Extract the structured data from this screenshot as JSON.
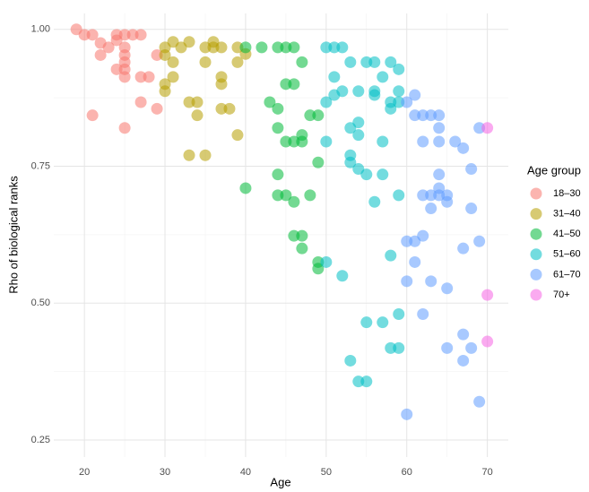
{
  "chart_data": {
    "type": "scatter",
    "x_label": "Age",
    "y_label": "Rho of biological ranks",
    "legend_title": "Age group",
    "legend_position": "right",
    "grid": true,
    "xlim": [
      16.2,
      72.6
    ],
    "ylim": [
      0.219,
      1.029
    ],
    "xticks": [
      20,
      30,
      40,
      50,
      60,
      70
    ],
    "yticks": [
      {
        "value": 0.25,
        "label": "0.25"
      },
      {
        "value": 0.5,
        "label": "0.50"
      },
      {
        "value": 0.75,
        "label": "0.75"
      },
      {
        "value": 1.0,
        "label": "1.00"
      }
    ],
    "series": [
      {
        "name": "18–30",
        "color": "#F8766D",
        "x": [
          19,
          20,
          21,
          22,
          22,
          23,
          24,
          24,
          24,
          25,
          25,
          25,
          25,
          25,
          25,
          25,
          26,
          27,
          27,
          27,
          28,
          29,
          29,
          21
        ],
        "values": [
          1.0,
          0.99,
          0.99,
          0.975,
          0.953,
          0.967,
          0.99,
          0.98,
          0.927,
          0.99,
          0.967,
          0.953,
          0.94,
          0.927,
          0.913,
          0.82,
          0.99,
          0.99,
          0.913,
          0.867,
          0.913,
          0.953,
          0.855,
          0.843
        ]
      },
      {
        "name": "31–40",
        "color": "#B79F00",
        "x": [
          30,
          30,
          30,
          30,
          31,
          31,
          31,
          32,
          33,
          33,
          33,
          34,
          34,
          35,
          35,
          35,
          36,
          36,
          37,
          37,
          37,
          37,
          38,
          39,
          39,
          39,
          40
        ],
        "values": [
          0.967,
          0.953,
          0.9,
          0.887,
          0.977,
          0.94,
          0.913,
          0.967,
          0.977,
          0.867,
          0.77,
          0.867,
          0.843,
          0.967,
          0.94,
          0.77,
          0.977,
          0.967,
          0.967,
          0.913,
          0.9,
          0.855,
          0.855,
          0.967,
          0.94,
          0.807,
          0.955
        ]
      },
      {
        "name": "41–50",
        "color": "#00BA38",
        "x": [
          40,
          40,
          42,
          43,
          44,
          44,
          44,
          44,
          44,
          45,
          45,
          45,
          45,
          46,
          46,
          46,
          46,
          46,
          47,
          47,
          47,
          47,
          47,
          48,
          48,
          49,
          49,
          49,
          49
        ],
        "values": [
          0.967,
          0.71,
          0.967,
          0.867,
          0.967,
          0.855,
          0.82,
          0.735,
          0.697,
          0.967,
          0.9,
          0.795,
          0.697,
          0.967,
          0.9,
          0.795,
          0.685,
          0.623,
          0.94,
          0.807,
          0.795,
          0.623,
          0.6,
          0.843,
          0.697,
          0.843,
          0.757,
          0.575,
          0.563
        ]
      },
      {
        "name": "51–60",
        "color": "#00BFC4",
        "x": [
          50,
          50,
          50,
          50,
          51,
          51,
          51,
          52,
          52,
          52,
          53,
          53,
          53,
          53,
          53,
          54,
          54,
          54,
          54,
          54,
          55,
          55,
          55,
          55,
          56,
          56,
          56,
          56,
          57,
          57,
          57,
          57,
          58,
          58,
          58,
          58,
          58,
          59,
          59,
          59,
          59,
          59,
          59
        ],
        "values": [
          0.967,
          0.867,
          0.795,
          0.575,
          0.967,
          0.913,
          0.88,
          0.967,
          0.887,
          0.55,
          0.94,
          0.82,
          0.77,
          0.757,
          0.395,
          0.887,
          0.83,
          0.807,
          0.745,
          0.357,
          0.94,
          0.735,
          0.465,
          0.357,
          0.94,
          0.887,
          0.88,
          0.685,
          0.913,
          0.795,
          0.735,
          0.465,
          0.94,
          0.867,
          0.855,
          0.587,
          0.418,
          0.927,
          0.887,
          0.867,
          0.697,
          0.48,
          0.418
        ]
      },
      {
        "name": "61–70",
        "color": "#619CFF",
        "x": [
          60,
          60,
          60,
          60,
          61,
          61,
          61,
          61,
          62,
          62,
          62,
          62,
          62,
          63,
          63,
          63,
          63,
          64,
          64,
          64,
          64,
          64,
          64,
          65,
          65,
          65,
          65,
          66,
          67,
          67,
          67,
          67,
          68,
          68,
          68,
          69,
          69,
          69
        ],
        "values": [
          0.867,
          0.613,
          0.54,
          0.297,
          0.88,
          0.843,
          0.613,
          0.575,
          0.843,
          0.795,
          0.697,
          0.623,
          0.48,
          0.843,
          0.697,
          0.673,
          0.54,
          0.843,
          0.82,
          0.795,
          0.735,
          0.71,
          0.697,
          0.697,
          0.685,
          0.527,
          0.418,
          0.795,
          0.783,
          0.6,
          0.443,
          0.395,
          0.745,
          0.673,
          0.418,
          0.82,
          0.613,
          0.32
        ]
      },
      {
        "name": "70+",
        "color": "#F564E3",
        "x": [
          70,
          70,
          70
        ],
        "values": [
          0.82,
          0.515,
          0.43
        ]
      }
    ]
  }
}
